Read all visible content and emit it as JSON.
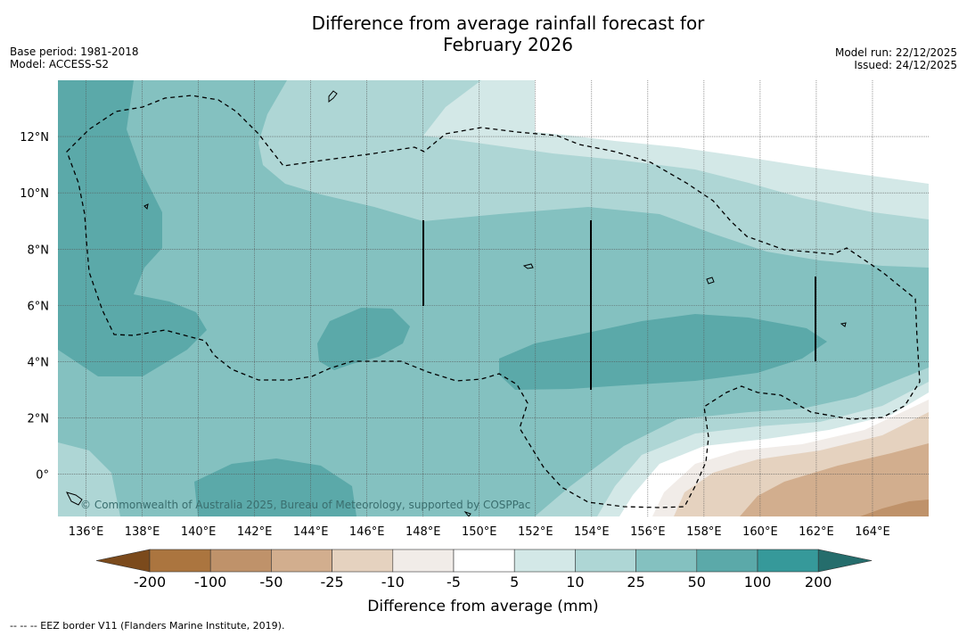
{
  "title": {
    "line1": "Difference from average rainfall forecast for",
    "line2": "February 2026"
  },
  "info_left": {
    "base_period": "Base period: 1981-2018",
    "model": "Model: ACCESS-S2"
  },
  "info_right": {
    "model_run": "Model run: 22/12/2025",
    "issued": "Issued: 24/12/2025"
  },
  "map": {
    "lon_range": [
      135,
      166
    ],
    "lat_range": [
      -1.5,
      14
    ],
    "copyright": "© Commonwealth of Australia 2025, Bureau of Meteorology, supported by COSPPac",
    "lon_ticks": [
      {
        "value": 136,
        "label": "136°E"
      },
      {
        "value": 138,
        "label": "138°E"
      },
      {
        "value": 140,
        "label": "140°E"
      },
      {
        "value": 142,
        "label": "142°E"
      },
      {
        "value": 144,
        "label": "144°E"
      },
      {
        "value": 146,
        "label": "146°E"
      },
      {
        "value": 148,
        "label": "148°E"
      },
      {
        "value": 150,
        "label": "150°E"
      },
      {
        "value": 152,
        "label": "152°E"
      },
      {
        "value": 154,
        "label": "154°E"
      },
      {
        "value": 156,
        "label": "156°E"
      },
      {
        "value": 158,
        "label": "158°E"
      },
      {
        "value": 160,
        "label": "160°E"
      },
      {
        "value": 162,
        "label": "162°E"
      },
      {
        "value": 164,
        "label": "164°E"
      }
    ],
    "lat_ticks": [
      {
        "value": 12,
        "label": "12°N"
      },
      {
        "value": 10,
        "label": "10°N"
      },
      {
        "value": 8,
        "label": "8°N"
      },
      {
        "value": 6,
        "label": "6°N"
      },
      {
        "value": 4,
        "label": "4°N"
      },
      {
        "value": 2,
        "label": "2°N"
      },
      {
        "value": 0,
        "label": "0°"
      }
    ]
  },
  "colorbar": {
    "title": "Difference from average (mm)",
    "labels": [
      "-200",
      "-100",
      "-50",
      "-25",
      "-10",
      "-5",
      "5",
      "10",
      "25",
      "50",
      "100",
      "200"
    ],
    "colors": [
      "#7b4a1c",
      "#ab753f",
      "#bf926a",
      "#d2ae8e",
      "#e5d2bf",
      "#f1ece8",
      "#ffffff",
      "#d3e8e7",
      "#aed6d5",
      "#84c1c0",
      "#5ba9a9",
      "#36999a",
      "#256d6c"
    ]
  },
  "footnote": "--  --  -- EEZ border V11 (Flanders Marine Institute, 2019)."
}
